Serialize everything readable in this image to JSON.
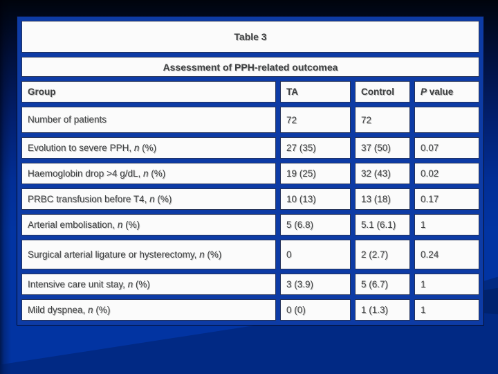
{
  "slide": {
    "title": "Table 3",
    "subtitle": "Assessment of PPH-related outcomea"
  },
  "table": {
    "header": {
      "group": "Group",
      "ta": "TA",
      "control": "Control",
      "p_italic": "P",
      "p_rest": " value"
    },
    "rows": [
      {
        "pre": "Number of patients",
        "it": "",
        "post": "",
        "ta": "72",
        "control": "72",
        "p": ""
      },
      {
        "pre": "Evolution to severe PPH, ",
        "it": "n",
        "post": " (%)",
        "ta": "27 (35)",
        "control": "37 (50)",
        "p": "0.07"
      },
      {
        "pre": "Haemoglobin drop >4 g/dL, ",
        "it": "n",
        "post": " (%)",
        "ta": "19 (25)",
        "control": "32 (43)",
        "p": "0.02"
      },
      {
        "pre": "PRBC transfusion before T4, ",
        "it": "n",
        "post": " (%)",
        "ta": "10 (13)",
        "control": "13 (18)",
        "p": "0.17"
      },
      {
        "pre": "Arterial embolisation, ",
        "it": "n",
        "post": " (%)",
        "ta": "5 (6.8)",
        "control": "5.1 (6.1)",
        "p": "1"
      },
      {
        "pre": "Surgical arterial ligature or hysterectomy, ",
        "it": "n",
        "post": " (%)",
        "ta": "0",
        "control": "2 (2.7)",
        "p": "0.24"
      },
      {
        "pre": "Intensive care unit stay, ",
        "it": "n",
        "post": " (%)",
        "ta": "3 (3.9)",
        "control": "5 (6.7)",
        "p": "1"
      },
      {
        "pre": "Mild dyspnea, ",
        "it": "n",
        "post": " (%)",
        "ta": "0 (0)",
        "control": "1 (1.3)",
        "p": "1"
      }
    ]
  },
  "colors": {
    "bg_top": "#00040c",
    "bg_blue": "#0234a2",
    "border_blue": "#0d3ba5",
    "cell_bg": "#fbfbfb",
    "text_gray": "#3e4041"
  }
}
